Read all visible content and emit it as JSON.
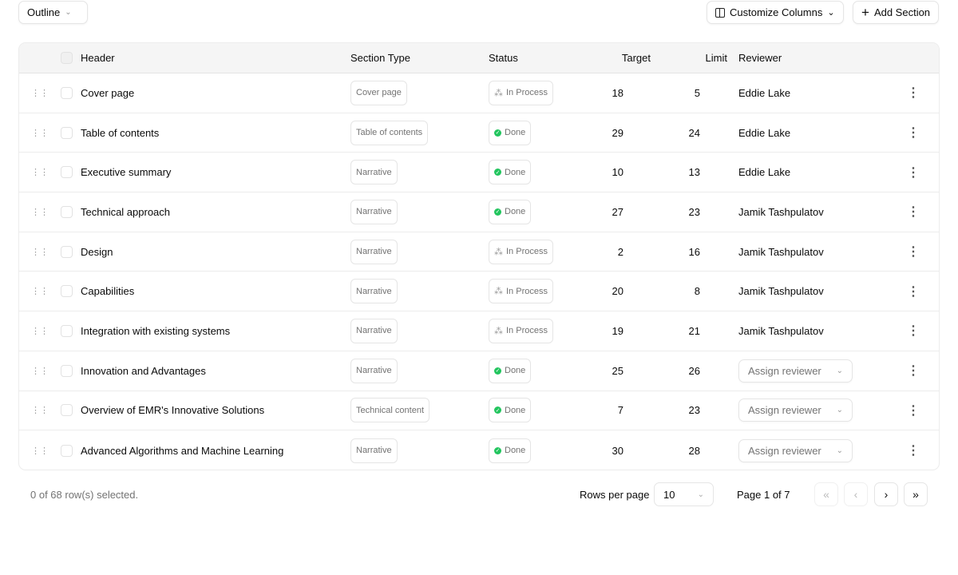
{
  "toolbar": {
    "view": "Outline",
    "customize": "Customize Columns",
    "add": "Add Section"
  },
  "columns": {
    "header": "Header",
    "type": "Section Type",
    "status": "Status",
    "target": "Target",
    "limit": "Limit",
    "reviewer": "Reviewer"
  },
  "rows": [
    {
      "header": "Cover page",
      "type": "Cover page",
      "status": "In Process",
      "target": "18",
      "limit": "5",
      "reviewer": "Eddie Lake"
    },
    {
      "header": "Table of contents",
      "type": "Table of contents",
      "status": "Done",
      "target": "29",
      "limit": "24",
      "reviewer": "Eddie Lake"
    },
    {
      "header": "Executive summary",
      "type": "Narrative",
      "status": "Done",
      "target": "10",
      "limit": "13",
      "reviewer": "Eddie Lake"
    },
    {
      "header": "Technical approach",
      "type": "Narrative",
      "status": "Done",
      "target": "27",
      "limit": "23",
      "reviewer": "Jamik Tashpulatov"
    },
    {
      "header": "Design",
      "type": "Narrative",
      "status": "In Process",
      "target": "2",
      "limit": "16",
      "reviewer": "Jamik Tashpulatov"
    },
    {
      "header": "Capabilities",
      "type": "Narrative",
      "status": "In Process",
      "target": "20",
      "limit": "8",
      "reviewer": "Jamik Tashpulatov"
    },
    {
      "header": "Integration with existing systems",
      "type": "Narrative",
      "status": "In Process",
      "target": "19",
      "limit": "21",
      "reviewer": "Jamik Tashpulatov"
    },
    {
      "header": "Innovation and Advantages",
      "type": "Narrative",
      "status": "Done",
      "target": "25",
      "limit": "26",
      "reviewer": null,
      "reviewer_placeholder": "Assign reviewer"
    },
    {
      "header": "Overview of EMR's Innovative Solutions",
      "type": "Technical content",
      "status": "Done",
      "target": "7",
      "limit": "23",
      "reviewer": null,
      "reviewer_placeholder": "Assign reviewer"
    },
    {
      "header": "Advanced Algorithms and Machine Learning",
      "type": "Narrative",
      "status": "Done",
      "target": "30",
      "limit": "28",
      "reviewer": null,
      "reviewer_placeholder": "Assign reviewer"
    }
  ],
  "footer": {
    "selected": "0 of 68 row(s) selected.",
    "rows_per_page_label": "Rows per page",
    "rows_per_page": "10",
    "page": "Page 1 of 7"
  },
  "colors": {
    "done": "#22c55e",
    "border": "#e5e5e5",
    "header_bg": "#f5f5f5"
  }
}
